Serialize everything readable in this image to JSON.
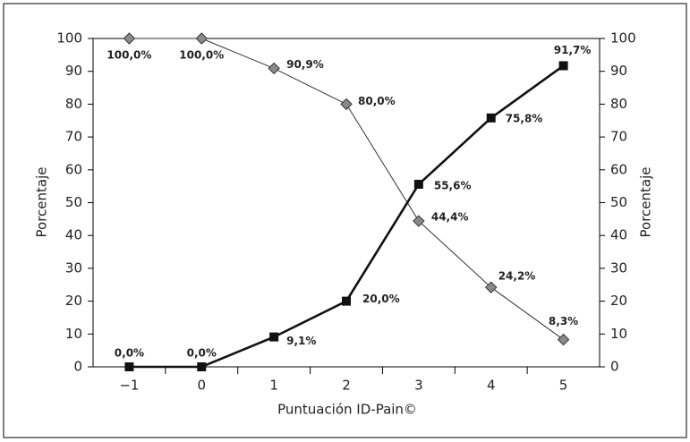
{
  "chart_data": {
    "type": "line",
    "x_label": "Puntuación ID-Pain©",
    "y_label": "Porcentaje",
    "y2_label": "Porcentaje",
    "categories": [
      "−1",
      "0",
      "1",
      "2",
      "3",
      "4",
      "5"
    ],
    "series": [
      {
        "marker": "diamond",
        "color": "#8a8a8a",
        "values": [
          100,
          100,
          90.9,
          80,
          44.4,
          24.2,
          8.3
        ],
        "value_labels": [
          "100,0%",
          "100,0%",
          "90,9%",
          "80,0%",
          "44,4%",
          "24,2%",
          "8,3%"
        ]
      },
      {
        "marker": "square",
        "color": "#111111",
        "values": [
          0,
          0,
          9.1,
          20,
          55.6,
          75.8,
          91.7
        ],
        "value_labels": [
          "0,0%",
          "0,0%",
          "9,1%",
          "20,0%",
          "55,6%",
          "75,8%",
          "91,7%"
        ]
      }
    ],
    "ylim": [
      0,
      100
    ],
    "yticks": [
      0,
      10,
      20,
      30,
      40,
      50,
      60,
      70,
      80,
      90,
      100
    ],
    "y2lim": [
      0,
      100
    ],
    "y2ticks": [
      0,
      10,
      20,
      30,
      40,
      50,
      60,
      70,
      80,
      90,
      100
    ]
  }
}
